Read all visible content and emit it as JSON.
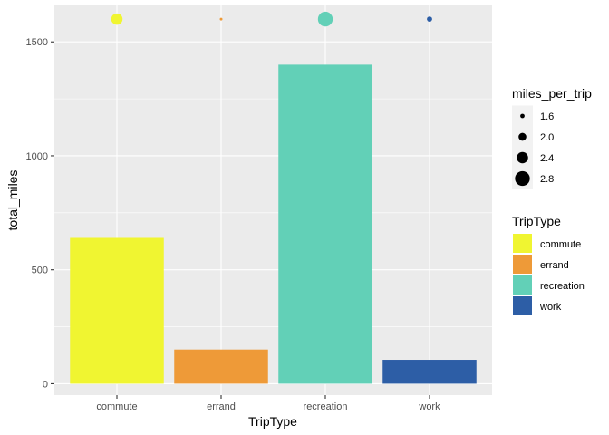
{
  "chart_data": {
    "type": "bar",
    "xlabel": "TripType",
    "ylabel": "total_miles",
    "ylim": [
      -50,
      1660
    ],
    "yticks": [
      0,
      500,
      1000,
      1500
    ],
    "grid": true,
    "categories": [
      "commute",
      "errand",
      "recreation",
      "work"
    ],
    "values": [
      640,
      150,
      1400,
      105
    ],
    "colors": [
      "#f0f531",
      "#ee9a38",
      "#62d0b7",
      "#2d5ea6"
    ],
    "point_layer": {
      "y": 1600,
      "miles_per_trip": [
        2.4,
        1.2,
        2.8,
        1.7
      ]
    },
    "legend": {
      "placement": "right",
      "size": {
        "title": "miles_per_trip",
        "items": [
          {
            "label": "1.6",
            "value": 1.6
          },
          {
            "label": "2.0",
            "value": 2.0
          },
          {
            "label": "2.4",
            "value": 2.4
          },
          {
            "label": "2.8",
            "value": 2.8
          }
        ]
      },
      "fill": {
        "title": "TripType",
        "items": [
          {
            "label": "commute",
            "color": "#f0f531"
          },
          {
            "label": "errand",
            "color": "#ee9a38"
          },
          {
            "label": "recreation",
            "color": "#62d0b7"
          },
          {
            "label": "work",
            "color": "#2d5ea6"
          }
        ]
      }
    }
  }
}
